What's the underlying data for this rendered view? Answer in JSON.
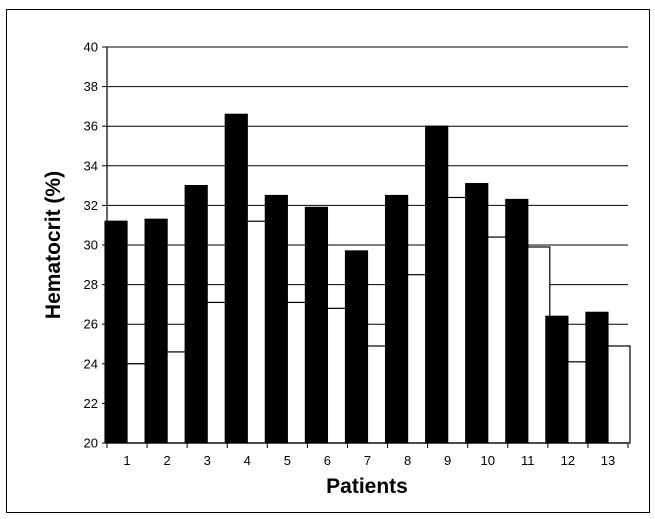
{
  "chart_data": {
    "type": "bar",
    "title": "",
    "xlabel": "Patients",
    "ylabel": "Hematocrit (%)",
    "ylim": [
      20,
      40
    ],
    "yticks": [
      20,
      22,
      24,
      26,
      28,
      30,
      32,
      34,
      36,
      38,
      40
    ],
    "grid": true,
    "legend": "none",
    "categories": [
      "1",
      "2",
      "3",
      "4",
      "5",
      "6",
      "7",
      "8",
      "9",
      "10",
      "11",
      "12",
      "13"
    ],
    "series": [
      {
        "color": "#000000",
        "values": [
          31.2,
          31.3,
          33.0,
          36.6,
          32.5,
          31.9,
          29.7,
          32.5,
          36.0,
          33.1,
          32.3,
          26.4,
          26.6
        ]
      },
      {
        "color": "#ffffff",
        "values": [
          24.0,
          24.6,
          27.1,
          31.2,
          27.1,
          26.8,
          24.9,
          28.5,
          32.4,
          30.4,
          29.9,
          24.1,
          24.9
        ]
      }
    ]
  }
}
